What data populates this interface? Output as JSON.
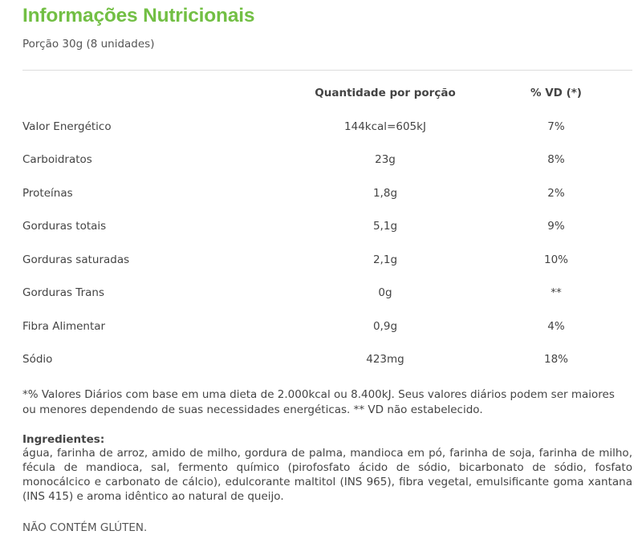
{
  "header": {
    "title": "Informações Nutricionais",
    "portion": "Porção 30g (8 unidades)",
    "title_color": "#72bf44"
  },
  "table": {
    "columns": {
      "quantity": "Quantidade por porção",
      "daily_value": "% VD (*)"
    },
    "rows": [
      {
        "name": "Valor Energético",
        "quantity": "144kcal=605kJ",
        "daily_value": "7%"
      },
      {
        "name": "Carboidratos",
        "quantity": "23g",
        "daily_value": "8%"
      },
      {
        "name": "Proteínas",
        "quantity": "1,8g",
        "daily_value": "2%"
      },
      {
        "name": "Gorduras totais",
        "quantity": "5,1g",
        "daily_value": "9%"
      },
      {
        "name": "Gorduras saturadas",
        "quantity": "2,1g",
        "daily_value": "10%"
      },
      {
        "name": "Gorduras Trans",
        "quantity": "0g",
        "daily_value": "**"
      },
      {
        "name": "Fibra Alimentar",
        "quantity": "0,9g",
        "daily_value": "4%"
      },
      {
        "name": "Sódio",
        "quantity": "423mg",
        "daily_value": "18%"
      }
    ]
  },
  "footnote": "*% Valores Diários com base em uma dieta de 2.000kcal ou 8.400kJ. Seus valores diários podem ser maiores ou menores dependendo de suas necessidades energéticas. ** VD não estabelecido.",
  "ingredients": {
    "title": "Ingredientes:",
    "text": "água, farinha de arroz, amido de milho, gordura de palma, mandioca em pó, farinha de soja, farinha de milho, fécula de mandioca, sal, fermento químico (pirofosfato ácido de sódio, bicarbonato de sódio, fosfato monocálcico e carbonato de cálcio), edulcorante maltitol (INS 965), fibra vegetal, emulsificante goma xantana (INS 415) e aroma idêntico ao natural de queijo."
  },
  "gluten_notice": "NÃO CONTÉM GLÚTEN."
}
